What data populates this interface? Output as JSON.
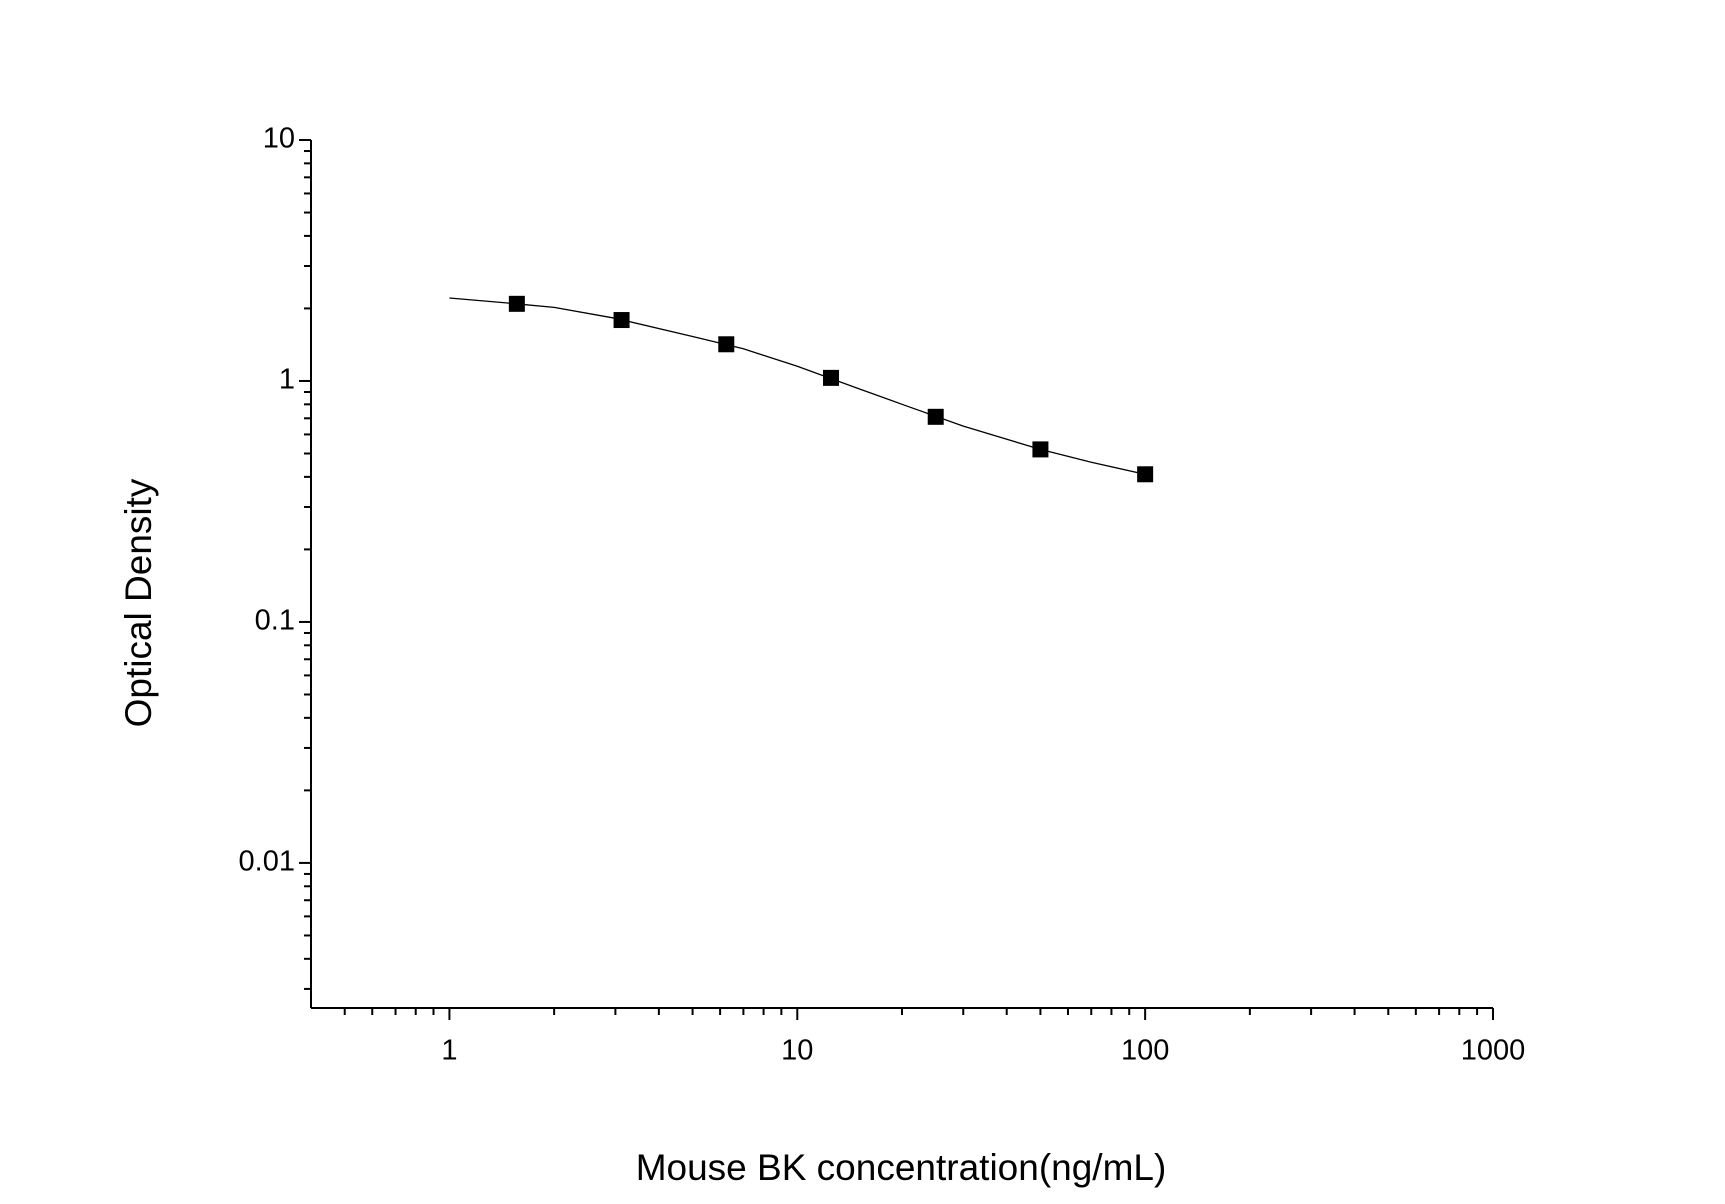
{
  "chart_data": {
    "type": "scatter",
    "xlabel": "Mouse BK concentration(ng/mL)",
    "ylabel": "Optical Density",
    "xscale": "log",
    "yscale": "log",
    "xlim": [
      0.4,
      1000
    ],
    "ylim": [
      0.0025,
      10
    ],
    "xticks": [
      1,
      10,
      100,
      1000
    ],
    "yticks": [
      0.01,
      0.1,
      1,
      10
    ],
    "xminorticks": [
      0.5,
      0.6,
      0.7,
      0.8,
      0.9,
      2,
      3,
      4,
      5,
      6,
      7,
      8,
      9,
      20,
      30,
      40,
      50,
      60,
      70,
      80,
      90,
      200,
      300,
      400,
      500,
      600,
      700,
      800,
      900
    ],
    "yminorticks": [
      0.003,
      0.004,
      0.005,
      0.006,
      0.007,
      0.008,
      0.009,
      0.02,
      0.03,
      0.04,
      0.05,
      0.06,
      0.07,
      0.08,
      0.09,
      0.2,
      0.3,
      0.4,
      0.5,
      0.6,
      0.7,
      0.8,
      0.9,
      2,
      3,
      4,
      5,
      6,
      7,
      8,
      9
    ],
    "series": [
      {
        "color": "#000000",
        "marker": "square",
        "x": [
          1.5625,
          3.125,
          6.25,
          12.5,
          25,
          50,
          100
        ],
        "values": [
          2.09,
          1.79,
          1.42,
          1.03,
          0.71,
          0.52,
          0.41
        ]
      },
      {
        "color": "#000000",
        "marker": "line",
        "x": [
          1,
          1.5,
          2,
          3,
          5,
          7,
          10,
          15,
          20,
          30,
          50,
          70,
          100
        ],
        "values": [
          2.21,
          2.1,
          2.02,
          1.82,
          1.53,
          1.36,
          1.15,
          0.93,
          0.8,
          0.65,
          0.52,
          0.46,
          0.41
        ]
      }
    ]
  }
}
